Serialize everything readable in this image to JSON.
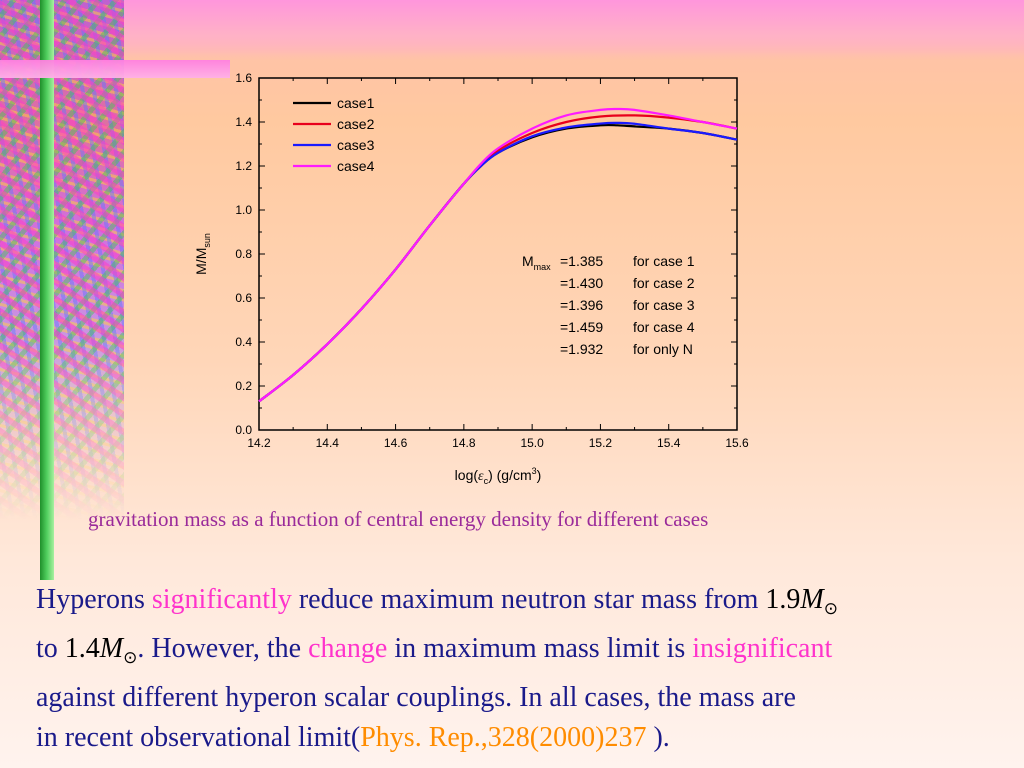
{
  "chart_data": {
    "type": "line",
    "xlabel": "log(εc) (g/cm3)",
    "xlabel_parts": {
      "prefix": "log(",
      "symbol": "ε",
      "sub": "c",
      "middle": ") (g/cm",
      "sup": "3",
      "suffix": ")"
    },
    "ylabel": "M/Msun",
    "ylabel_parts": {
      "main": "M/M",
      "sub": "sun"
    },
    "xlim": [
      14.2,
      15.6
    ],
    "ylim": [
      0.0,
      1.6
    ],
    "xticks": [
      "14.2",
      "14.4",
      "14.6",
      "14.8",
      "15.0",
      "15.2",
      "15.4",
      "15.6"
    ],
    "yticks": [
      "0.0",
      "0.2",
      "0.4",
      "0.6",
      "0.8",
      "1.0",
      "1.2",
      "1.4",
      "1.6"
    ],
    "xtick_values": [
      14.2,
      14.4,
      14.6,
      14.8,
      15.0,
      15.2,
      15.4,
      15.6
    ],
    "ytick_values": [
      0.0,
      0.2,
      0.4,
      0.6,
      0.8,
      1.0,
      1.2,
      1.4,
      1.6
    ],
    "legend_position": "top-left",
    "series": [
      {
        "name": "case1",
        "color": "#000000",
        "x": [
          14.2,
          14.3,
          14.4,
          14.5,
          14.6,
          14.7,
          14.8,
          14.85,
          14.9,
          15.0,
          15.1,
          15.2,
          15.25,
          15.3,
          15.4,
          15.5,
          15.6
        ],
        "y": [
          0.13,
          0.25,
          0.39,
          0.55,
          0.73,
          0.93,
          1.12,
          1.2,
          1.26,
          1.33,
          1.37,
          1.385,
          1.385,
          1.38,
          1.37,
          1.35,
          1.32
        ]
      },
      {
        "name": "case2",
        "color": "#e8001c",
        "x": [
          14.2,
          14.3,
          14.4,
          14.5,
          14.6,
          14.7,
          14.8,
          14.85,
          14.9,
          15.0,
          15.1,
          15.2,
          15.3,
          15.4,
          15.5,
          15.6
        ],
        "y": [
          0.13,
          0.25,
          0.39,
          0.55,
          0.73,
          0.93,
          1.12,
          1.2,
          1.27,
          1.35,
          1.4,
          1.425,
          1.43,
          1.42,
          1.4,
          1.37
        ]
      },
      {
        "name": "case3",
        "color": "#1a1aff",
        "x": [
          14.2,
          14.3,
          14.4,
          14.5,
          14.6,
          14.7,
          14.8,
          14.85,
          14.9,
          15.0,
          15.1,
          15.2,
          15.25,
          15.3,
          15.4,
          15.5,
          15.6
        ],
        "y": [
          0.13,
          0.25,
          0.39,
          0.55,
          0.73,
          0.93,
          1.12,
          1.2,
          1.26,
          1.335,
          1.375,
          1.393,
          1.396,
          1.392,
          1.37,
          1.35,
          1.32
        ]
      },
      {
        "name": "case4",
        "color": "#ff1aff",
        "x": [
          14.2,
          14.3,
          14.4,
          14.5,
          14.6,
          14.7,
          14.8,
          14.85,
          14.9,
          15.0,
          15.1,
          15.2,
          15.25,
          15.3,
          15.4,
          15.5,
          15.6
        ],
        "y": [
          0.13,
          0.25,
          0.39,
          0.55,
          0.73,
          0.93,
          1.12,
          1.21,
          1.28,
          1.37,
          1.43,
          1.455,
          1.459,
          1.455,
          1.43,
          1.4,
          1.37
        ]
      }
    ],
    "annotations": {
      "mmax_label": "M",
      "mmax_sub": "max",
      "rows": [
        {
          "value": "=1.385",
          "case": "for case 1"
        },
        {
          "value": "=1.430",
          "case": "for case 2"
        },
        {
          "value": "=1.396",
          "case": "for case 3"
        },
        {
          "value": "=1.459",
          "case": "for case 4"
        },
        {
          "value": "=1.932",
          "case": "for only N"
        }
      ]
    }
  },
  "caption": "gravitation mass as a function of central energy density for different cases",
  "paragraph": {
    "l1_a": "Hyperons ",
    "l1_b": "significantly",
    "l1_c": " reduce maximum neutron star mass from ",
    "math1_num": "1.9",
    "math_M": "M",
    "math_sun": "⊙",
    "l2_a": "to ",
    "math2_num": "1.4",
    "l2_b": ". However, the ",
    "l2_c": "change",
    "l2_d": " in maximum mass limit is ",
    "l2_e": "insignificant",
    "l3": "against different hyperon scalar couplings. In all cases, the mass are",
    "l4_a": "in recent observational limit(",
    "l4_b": "Phys. Rep.,328(2000)237 ",
    "l4_c": ")."
  }
}
